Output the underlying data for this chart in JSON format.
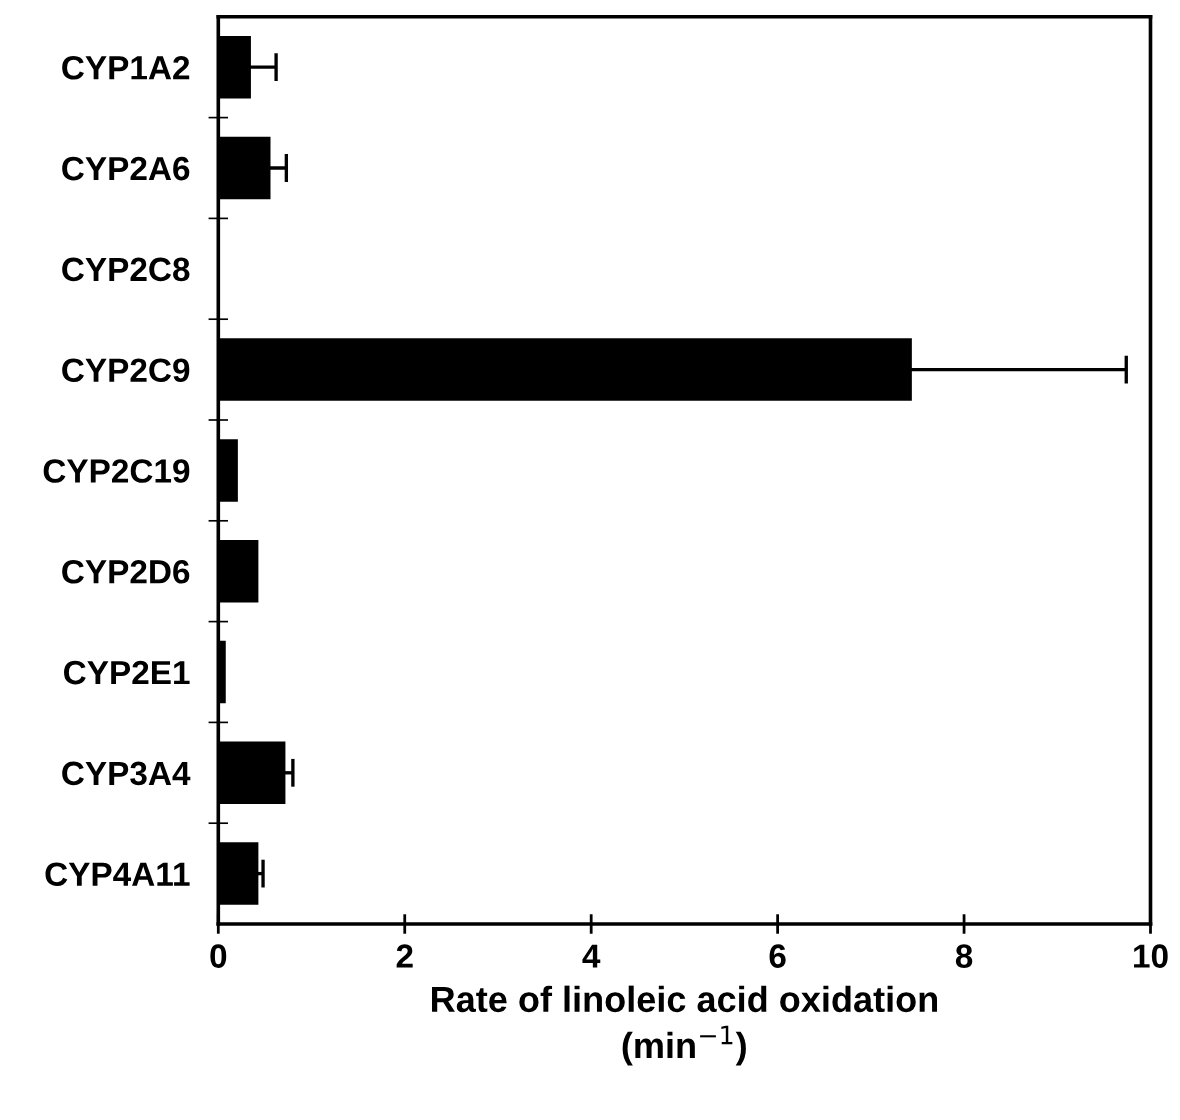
{
  "chart_data": {
    "type": "bar",
    "orientation": "horizontal",
    "categories": [
      "CYP1A2",
      "CYP2A6",
      "CYP2C8",
      "CYP2C9",
      "CYP2C19",
      "CYP2D6",
      "CYP2E1",
      "CYP3A4",
      "CYP4A11"
    ],
    "values": [
      0.35,
      0.56,
      0,
      7.44,
      0.21,
      0.43,
      0.08,
      0.72,
      0.43
    ],
    "errors": [
      0.27,
      0.17,
      null,
      2.3,
      null,
      null,
      null,
      0.08,
      0.05
    ],
    "color": "#000000",
    "xlabel": "Rate of linoleic acid oxidation\n(min$^{−1}$)",
    "xlim": [
      0,
      10
    ],
    "xticks": [
      0,
      2,
      4,
      6,
      8,
      10
    ],
    "grid": false
  }
}
